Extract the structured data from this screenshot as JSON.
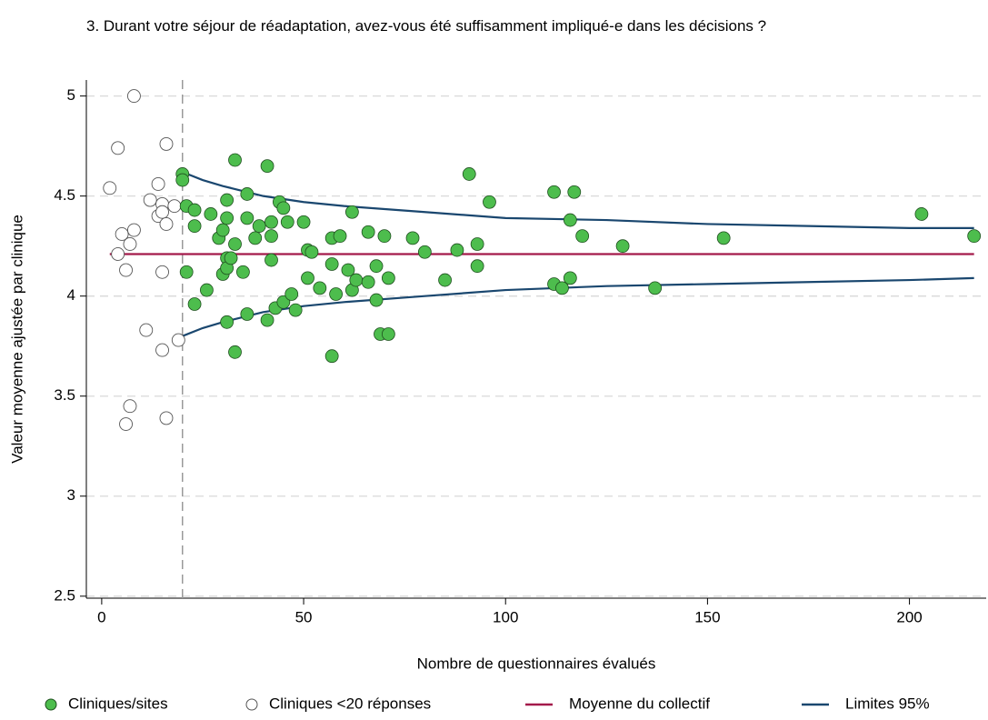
{
  "chart_data": {
    "type": "scatter",
    "title": "3. Durant votre séjour de réadaptation, avez-vous été suffisamment impliqué-e dans les décisions ?",
    "x_label": "Nombre de questionnaires évalués",
    "y_label": "Valeur moyenne ajustée par clinique",
    "xlim": [
      -3.8,
      219
    ],
    "ylim": [
      2.49,
      5.08
    ],
    "xticks": [
      0,
      50,
      100,
      150,
      200
    ],
    "yticks": [
      2.5,
      3,
      3.5,
      4,
      4.5,
      5
    ],
    "grid": true,
    "threshold_x": 20,
    "legend": "bottom",
    "series": [
      {
        "name": "Cliniques/sites",
        "color": "#4dbd4d",
        "marker": "filled",
        "x": [
          20,
          20,
          21,
          21,
          23,
          23,
          23,
          26,
          27,
          29,
          30,
          30,
          31,
          31,
          31,
          31,
          31,
          32,
          33,
          33,
          33,
          35,
          36,
          36,
          36,
          38,
          39,
          41,
          41,
          42,
          42,
          42,
          43,
          44,
          45,
          45,
          46,
          47,
          48,
          50,
          51,
          51,
          52,
          54,
          57,
          57,
          57,
          58,
          59,
          61,
          62,
          62,
          63,
          66,
          66,
          68,
          68,
          69,
          71,
          70,
          71,
          77,
          80,
          85,
          88,
          91,
          93,
          93,
          96,
          112,
          112,
          114,
          116,
          116,
          117,
          119,
          129,
          137,
          154,
          203,
          216
        ],
        "values": [
          4.61,
          4.58,
          4.45,
          4.12,
          4.43,
          4.35,
          3.96,
          4.03,
          4.41,
          4.29,
          4.33,
          4.11,
          4.48,
          4.39,
          4.19,
          4.14,
          3.87,
          4.19,
          4.68,
          4.26,
          3.72,
          4.12,
          4.51,
          4.39,
          3.91,
          4.29,
          4.35,
          3.88,
          4.65,
          4.37,
          4.3,
          4.18,
          3.94,
          4.47,
          4.44,
          3.97,
          4.37,
          4.01,
          3.93,
          4.37,
          4.23,
          4.09,
          4.22,
          4.04,
          4.16,
          4.29,
          3.7,
          4.01,
          4.3,
          4.13,
          4.42,
          4.03,
          4.08,
          4.32,
          4.07,
          4.15,
          3.98,
          3.81,
          3.81,
          4.3,
          4.09,
          4.29,
          4.22,
          4.08,
          4.23,
          4.61,
          4.26,
          4.15,
          4.47,
          4.52,
          4.06,
          4.04,
          4.38,
          4.09,
          4.52,
          4.3,
          4.25,
          4.04,
          4.29,
          4.41,
          4.3
        ]
      },
      {
        "name": "Cliniques <20 réponses",
        "color": "#ffffff",
        "marker": "hollow",
        "x": [
          2,
          4,
          8,
          4,
          5,
          6,
          7,
          8,
          11,
          12,
          14,
          14,
          15,
          15,
          15,
          16,
          16,
          18,
          15,
          19,
          7,
          6,
          16
        ],
        "values": [
          4.54,
          4.74,
          5.0,
          4.21,
          4.31,
          4.13,
          4.26,
          4.33,
          3.83,
          4.48,
          4.56,
          4.4,
          4.46,
          4.42,
          4.12,
          4.76,
          4.36,
          4.45,
          3.73,
          3.78,
          3.45,
          3.36,
          3.39
        ]
      },
      {
        "name": "Moyenne du collectif",
        "color": "#a31a4b",
        "marker": "line",
        "x": [
          2,
          216
        ],
        "values": [
          4.21,
          4.21
        ]
      },
      {
        "name": "Limites 95%",
        "color": "#1a476f",
        "marker": "band",
        "x": [
          20,
          25,
          30,
          40,
          50,
          60,
          80,
          100,
          125,
          150,
          175,
          200,
          216
        ],
        "upper": [
          4.62,
          4.58,
          4.55,
          4.5,
          4.47,
          4.45,
          4.42,
          4.39,
          4.38,
          4.36,
          4.35,
          4.34,
          4.34
        ],
        "lower": [
          3.8,
          3.84,
          3.87,
          3.92,
          3.95,
          3.97,
          4.0,
          4.03,
          4.05,
          4.06,
          4.07,
          4.08,
          4.09
        ]
      }
    ]
  }
}
